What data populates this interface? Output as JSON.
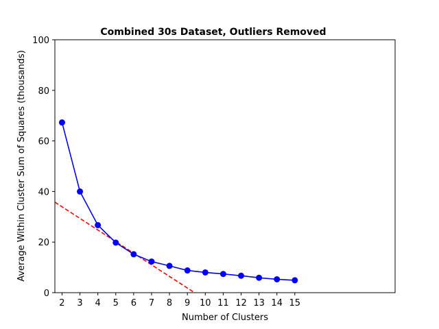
{
  "chart_data": {
    "type": "line",
    "title": "Combined 30s Dataset, Outliers Removed",
    "xlabel": "Number of Clusters",
    "ylabel": "Average Within Cluster Sum of Squares (thousands)",
    "xlim": [
      1.6,
      20.6
    ],
    "ylim": [
      0,
      100
    ],
    "xticks": [
      2,
      3,
      4,
      5,
      6,
      7,
      8,
      9,
      10,
      11,
      12,
      13,
      14,
      15
    ],
    "yticks": [
      0,
      20,
      40,
      60,
      80,
      100
    ],
    "grid": false,
    "series": [
      {
        "color": "#0000ff",
        "style": "solid",
        "marker": "circle",
        "x": [
          2,
          3,
          4,
          5,
          6,
          7,
          8,
          9,
          10,
          11,
          12,
          13,
          14,
          15
        ],
        "y": [
          67.3,
          40.0,
          26.7,
          19.8,
          15.2,
          12.3,
          10.6,
          8.8,
          8.0,
          7.4,
          6.7,
          5.9,
          5.3,
          4.9
        ]
      },
      {
        "color": "#ff0000",
        "style": "dashed",
        "x": [
          1.6,
          9.4
        ],
        "y": [
          35.8,
          0
        ]
      }
    ]
  }
}
